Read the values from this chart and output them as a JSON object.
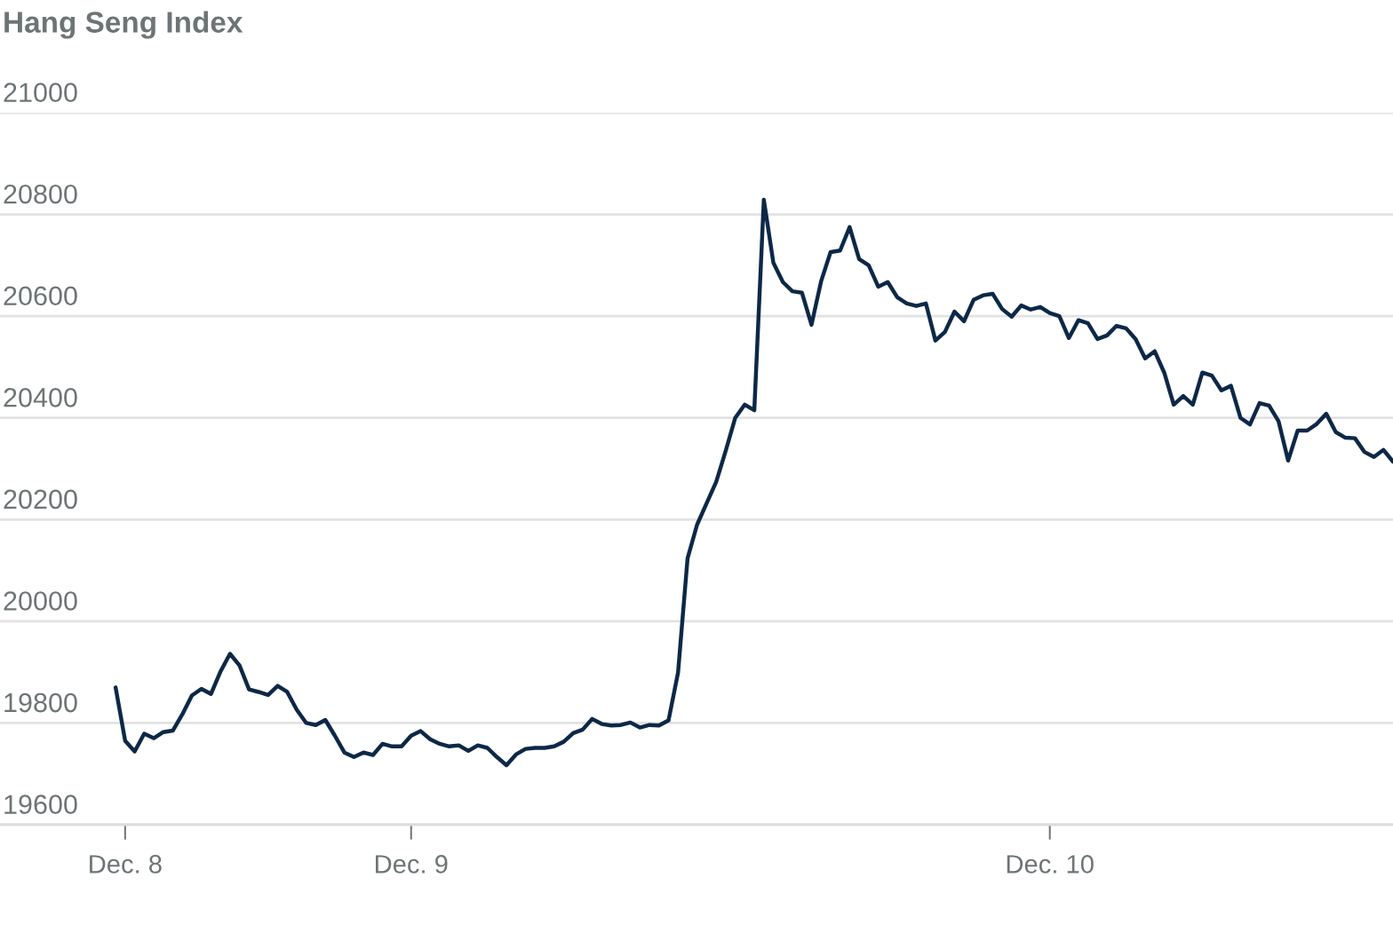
{
  "chart_data": {
    "type": "line",
    "title": "Hang Seng Index",
    "categories": [
      null,
      "Dec. 8",
      null,
      null,
      null,
      null,
      null,
      null,
      null,
      null,
      null,
      null,
      null,
      null,
      null,
      null,
      null,
      null,
      null,
      null,
      null,
      null,
      null,
      null,
      null,
      null,
      null,
      null,
      null,
      null,
      null,
      "Dec. 9",
      null,
      null,
      null,
      null,
      null,
      null,
      null,
      null,
      null,
      null,
      null,
      null,
      null,
      null,
      null,
      null,
      null,
      null,
      null,
      null,
      null,
      null,
      null,
      null,
      null,
      null,
      null,
      null,
      null,
      null,
      null,
      null,
      null,
      null,
      null,
      null,
      null,
      null,
      null,
      null,
      null,
      null,
      null,
      null,
      null,
      null,
      null,
      null,
      null,
      null,
      null,
      null,
      null,
      null,
      null,
      null,
      null,
      null,
      null,
      null,
      null,
      null,
      null,
      null,
      null,
      null,
      "Dec. 10",
      null,
      null,
      null,
      null,
      null,
      null,
      null,
      null,
      null,
      null,
      null,
      null,
      null,
      null,
      null,
      null,
      null,
      null,
      null,
      null,
      null,
      null,
      null,
      null,
      null,
      null,
      null,
      null,
      null,
      null,
      null,
      null,
      null,
      null,
      null,
      null
    ],
    "series": [
      {
        "color": "#0d2847",
        "values": [
          19870,
          19765,
          19744,
          19779,
          19770,
          19782,
          19785,
          19817,
          19854,
          19867,
          19857,
          19901,
          19936,
          19913,
          19866,
          19861,
          19855,
          19873,
          19861,
          19826,
          19800,
          19796,
          19806,
          19775,
          19742,
          19733,
          19742,
          19737,
          19759,
          19754,
          19754,
          19775,
          19784,
          19768,
          19759,
          19754,
          19756,
          19745,
          19756,
          19751,
          19733,
          19717,
          19738,
          19749,
          19751,
          19751,
          19754,
          19763,
          19780,
          19787,
          19808,
          19798,
          19795,
          19796,
          19801,
          19791,
          19796,
          19795,
          19805,
          19899,
          20124,
          20190,
          20232,
          20274,
          20335,
          20400,
          20426,
          20415,
          20829,
          20705,
          20667,
          20649,
          20646,
          20583,
          20668,
          20726,
          20729,
          20775,
          20712,
          20700,
          20658,
          20667,
          20637,
          20625,
          20620,
          20625,
          20552,
          20569,
          20609,
          20590,
          20632,
          20641,
          20644,
          20614,
          20599,
          20621,
          20613,
          20618,
          20606,
          20600,
          20557,
          20592,
          20586,
          20555,
          20562,
          20581,
          20576,
          20555,
          20517,
          20531,
          20489,
          20426,
          20443,
          20426,
          20489,
          20483,
          20454,
          20463,
          20400,
          20387,
          20429,
          20424,
          20393,
          20316,
          20375,
          20375,
          20388,
          20408,
          20372,
          20361,
          20360,
          20333,
          20323,
          20337,
          20314
        ]
      }
    ],
    "ylim": [
      19600,
      21000
    ],
    "yticks": [
      19600,
      19800,
      20000,
      20200,
      20400,
      20600,
      20800,
      21000
    ],
    "grid": "y",
    "marker": "none",
    "line_style": "solid"
  }
}
